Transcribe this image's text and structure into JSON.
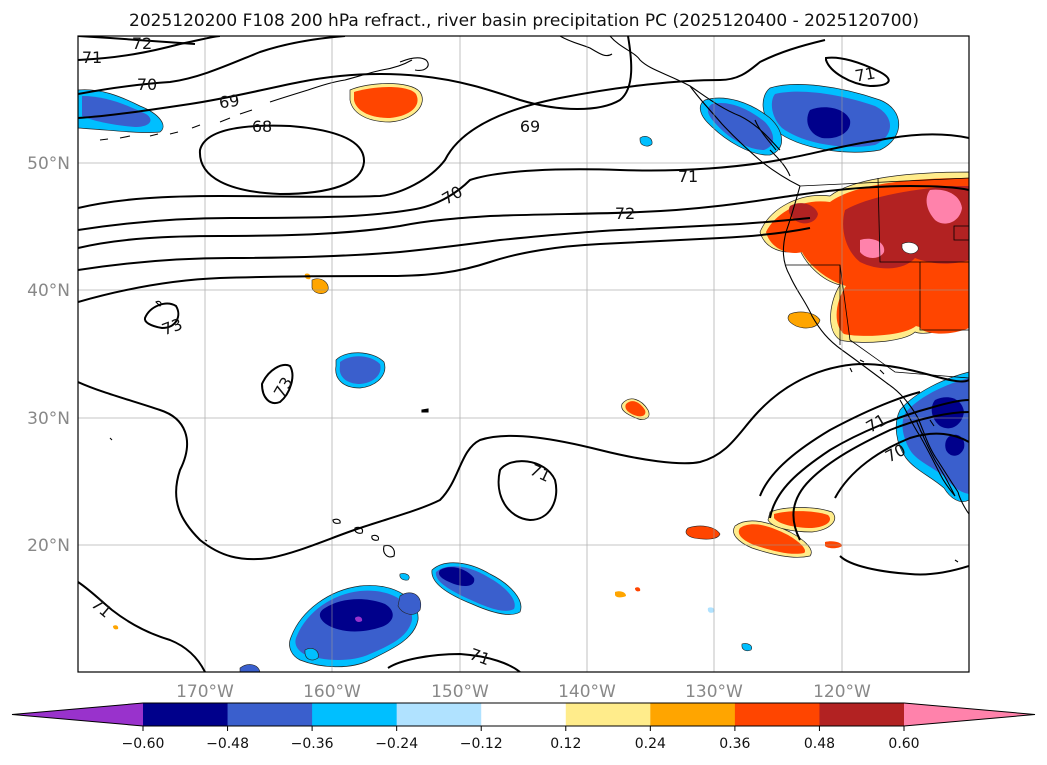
{
  "title": "2025120200 F108 200 hPa refract., river basin precipitation PC (2025120400 - 2025120700)",
  "lon_ticks": [
    "170°W",
    "160°W",
    "150°W",
    "140°W",
    "130°W",
    "120°W"
  ],
  "lat_ticks": [
    "50°N",
    "40°N",
    "30°N",
    "20°N"
  ],
  "contour_labels": [
    "72",
    "71",
    "70",
    "69",
    "68",
    "69",
    "71",
    "70",
    "72",
    "71",
    "73",
    "73",
    "71",
    "71",
    "70",
    "71",
    "71"
  ],
  "colorbar": {
    "colors": [
      "#9932cc",
      "#00008b",
      "#3a5fcd",
      "#00bfff",
      "#b0e2ff",
      "#ffffff",
      "#ffec8b",
      "#ffa500",
      "#ff4500",
      "#b22222",
      "#ff82ab"
    ],
    "tick_labels": [
      "-0.60",
      "-0.48",
      "-0.36",
      "-0.24",
      "-0.12",
      "0.12",
      "0.24",
      "0.36",
      "0.48",
      "0.60"
    ]
  },
  "field_colors": {
    "neg_light": "#00bfff",
    "neg_mid": "#3a5fcd",
    "neg_dark": "#00008b",
    "neg_extreme": "#9932cc",
    "pos_light": "#ffec8b",
    "pos_mid": "#ffa500",
    "pos_strong": "#ff4500",
    "pos_dark": "#b22222",
    "pos_extreme": "#ff82ab"
  }
}
